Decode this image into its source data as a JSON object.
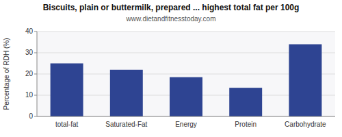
{
  "chart_data": {
    "type": "bar",
    "title": "Biscuits, plain or buttermilk, prepared ... highest total fat per 100g",
    "subtitle": "www.dietandfitnesstoday.com",
    "categories": [
      "total-fat",
      "Saturated-Fat",
      "Energy",
      "Protein",
      "Carbohydrate"
    ],
    "values": [
      25.0,
      22.0,
      18.5,
      13.5,
      34.0
    ],
    "color": "#2e4492",
    "ylabel": "Percentage of RDH (%)",
    "ylim": [
      0,
      40
    ],
    "yticks": [
      0,
      10,
      20,
      30,
      40
    ],
    "grid": true
  }
}
